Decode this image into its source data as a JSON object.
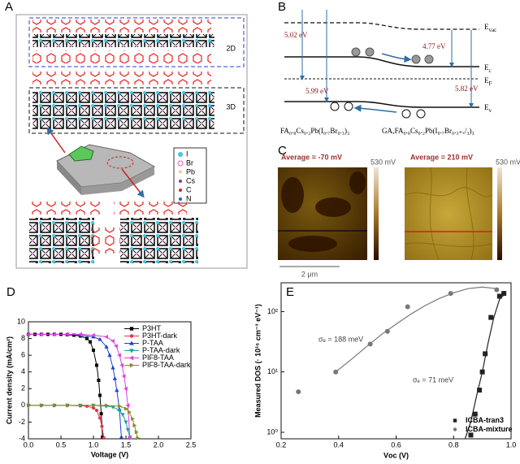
{
  "panel_labels": [
    "A",
    "B",
    "C",
    "D",
    "E"
  ],
  "panel_a": {
    "labels": [
      "2D",
      "3D"
    ],
    "legend": [
      "I",
      "Br",
      "Pb",
      "Cs",
      "C",
      "N"
    ]
  },
  "panel_b": {
    "gaps": [
      "5.02 eV",
      "4.77 eV",
      "5.99 eV",
      "5.82 eV"
    ],
    "levels": [
      {
        "symbol": "E",
        "sub": "vac"
      },
      {
        "symbol": "E",
        "sub": "c"
      },
      {
        "symbol": "E",
        "sub": "F"
      },
      {
        "symbol": "E",
        "sub": "v"
      }
    ],
    "materials": [
      "FA₀.₈Cs₀.₂Pb(I₀.₇Br₀.₃)₃",
      "GAₓFA₀.₈Cs₀.₂Pb(I₀.₇Br₀.₃₊ₓ/₃)₃"
    ]
  },
  "panel_c": {
    "titles": [
      "Average = -70 mV",
      "Average = 210 mV"
    ],
    "colorbar_labels": [
      "530 mV",
      "530 mV"
    ],
    "scale_bar": "2 μm"
  },
  "chart_data": [
    {
      "type": "line",
      "x_label": "Voltage (V)",
      "y_label": "Current density  (mA/cm²)",
      "xlim": [
        0,
        2.5
      ],
      "ylim": [
        -4,
        10
      ],
      "xticks": [
        {
          "value": 0,
          "label": "0.0"
        },
        0.5,
        {
          "value": 1,
          "label": "1.0"
        },
        1.5,
        {
          "value": 2,
          "label": "2.0"
        },
        2.5
      ],
      "yticks": [
        -4,
        -2,
        0,
        2,
        4,
        6,
        8,
        10
      ],
      "legend": "upper right",
      "series": [
        {
          "name": "P3HT",
          "color": "#000000",
          "marker": "square",
          "x": [
            0,
            0.1,
            0.2,
            0.3,
            0.4,
            0.5,
            0.6,
            0.7,
            0.8,
            0.9,
            0.95,
            1.0,
            1.05,
            1.08,
            1.1,
            1.12,
            1.14
          ],
          "values": [
            8.5,
            8.5,
            8.5,
            8.5,
            8.5,
            8.5,
            8.45,
            8.4,
            8.3,
            8.0,
            7.6,
            6.6,
            4.8,
            3.0,
            1.2,
            -1.0,
            -3.8
          ]
        },
        {
          "name": "P3HT-dark",
          "color": "#e8304a",
          "marker": "circle",
          "x": [
            0,
            0.2,
            0.4,
            0.6,
            0.8,
            0.9,
            1.0,
            1.05,
            1.1,
            1.13,
            1.16
          ],
          "values": [
            0,
            0,
            0,
            0,
            -0.05,
            -0.1,
            -0.3,
            -0.6,
            -1.5,
            -2.5,
            -3.9
          ]
        },
        {
          "name": "P-TAA",
          "color": "#2040d0",
          "marker": "triangle-up",
          "x": [
            0,
            0.2,
            0.4,
            0.6,
            0.8,
            1.0,
            1.1,
            1.2,
            1.25,
            1.3,
            1.33,
            1.36,
            1.4,
            1.43
          ],
          "values": [
            8.5,
            8.5,
            8.5,
            8.5,
            8.4,
            8.2,
            7.9,
            7.0,
            6.0,
            4.5,
            3.2,
            1.8,
            -0.5,
            -3.8
          ]
        },
        {
          "name": "P-TAA-dark",
          "color": "#1aa0a0",
          "marker": "triangle-down",
          "x": [
            0,
            0.2,
            0.4,
            0.6,
            0.8,
            1.0,
            1.2,
            1.3,
            1.4,
            1.45,
            1.5,
            1.53,
            1.56
          ],
          "values": [
            0,
            0,
            0,
            0,
            0,
            0,
            -0.1,
            -0.2,
            -0.6,
            -1.1,
            -2.0,
            -2.9,
            -3.9
          ]
        },
        {
          "name": "PIF8-TAA",
          "color": "#e040e0",
          "marker": "triangle-left",
          "x": [
            0,
            0.2,
            0.4,
            0.6,
            0.8,
            1.0,
            1.2,
            1.3,
            1.35,
            1.4,
            1.44,
            1.47,
            1.5,
            1.53,
            1.56
          ],
          "values": [
            8.5,
            8.5,
            8.5,
            8.5,
            8.5,
            8.4,
            8.2,
            7.7,
            7.1,
            6.0,
            4.8,
            3.5,
            2.0,
            0.0,
            -3.8
          ]
        },
        {
          "name": "PIF8-TAA-dark",
          "color": "#8a8a20",
          "marker": "triangle-right",
          "x": [
            0,
            0.2,
            0.4,
            0.6,
            0.8,
            1.0,
            1.2,
            1.4,
            1.5,
            1.55,
            1.6,
            1.63,
            1.66,
            1.68
          ],
          "values": [
            0,
            0,
            0,
            0,
            0,
            0,
            0,
            -0.1,
            -0.4,
            -0.8,
            -1.6,
            -2.4,
            -3.2,
            -3.9
          ]
        }
      ]
    },
    {
      "type": "scatter",
      "y_scale": "log",
      "x_label": "Vᴏᴄ (V)",
      "y_label": "Measured DOS (· 10¹⁶ cm⁻³ eV⁻¹)",
      "xlim": [
        0.2,
        1.0
      ],
      "ylim": [
        0.78,
        300
      ],
      "xticks": [
        0.2,
        0.4,
        0.6,
        0.8,
        {
          "value": 1,
          "label": "1.0"
        }
      ],
      "yticks": [
        {
          "value": 1,
          "label": "10⁰"
        },
        {
          "value": 10,
          "label": "10¹"
        },
        {
          "value": 100,
          "label": "10²"
        }
      ],
      "legend": "lower right",
      "series": [
        {
          "name": "ICBA-tran3",
          "color": "#222222",
          "marker": "square",
          "x": [
            0.86,
            0.875,
            0.89,
            0.9,
            0.91,
            0.93,
            0.96,
            0.975
          ],
          "values": [
            0.9,
            2,
            5,
            10,
            20,
            80,
            180,
            200
          ]
        },
        {
          "name": "ICBA-mixture",
          "color": "#777777",
          "marker": "circle",
          "x": [
            0.26,
            0.39,
            0.51,
            0.57,
            0.64,
            0.79,
            0.95
          ],
          "values": [
            4.7,
            10,
            29,
            47,
            120,
            200,
            230
          ]
        }
      ],
      "fits": [
        {
          "color": "#777777",
          "x": [
            0.39,
            0.45,
            0.5,
            0.55,
            0.6,
            0.65,
            0.7,
            0.75,
            0.8,
            0.85,
            0.9,
            0.95
          ],
          "values": [
            10,
            17,
            27,
            42,
            62,
            90,
            125,
            165,
            205,
            240,
            255,
            240
          ]
        },
        {
          "color": "#222222",
          "x": [
            0.84,
            0.86,
            0.88,
            0.9,
            0.92,
            0.94,
            0.96,
            0.98
          ],
          "values": [
            0.78,
            1.5,
            4,
            10,
            30,
            80,
            160,
            200
          ]
        }
      ],
      "annotations": [
        "σₑ = 188 meV",
        "σₑ = 71 meV"
      ]
    }
  ]
}
